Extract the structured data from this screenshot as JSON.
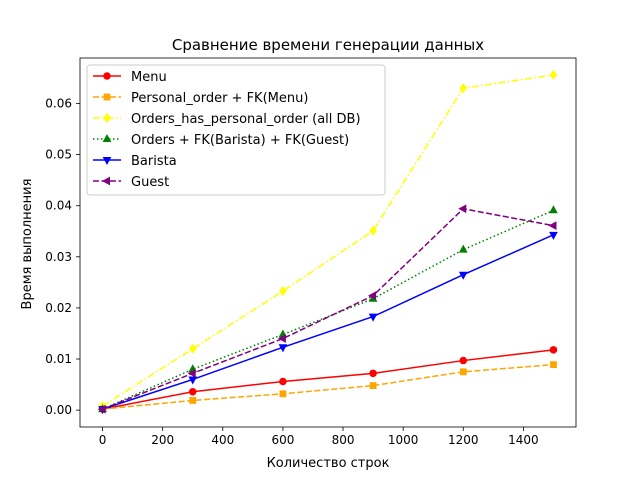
{
  "chart_data": {
    "type": "line",
    "title": "Сравнение времени генерации данных",
    "xlabel": "Количество строк",
    "ylabel": "Время выполнения",
    "x": [
      0,
      300,
      600,
      900,
      1200,
      1500
    ],
    "xlim": [
      -75,
      1575
    ],
    "ylim": [
      -0.0033,
      0.0689
    ],
    "xticks": [
      0,
      200,
      400,
      600,
      800,
      1000,
      1200,
      1400
    ],
    "xtick_labels": [
      "0",
      "200",
      "400",
      "600",
      "800",
      "1000",
      "1200",
      "1400"
    ],
    "yticks": [
      0.0,
      0.01,
      0.02,
      0.03,
      0.04,
      0.05,
      0.06
    ],
    "ytick_labels": [
      "0.00",
      "0.01",
      "0.02",
      "0.03",
      "0.04",
      "0.05",
      "0.06"
    ],
    "grid": false,
    "legend_position": "upper-left",
    "series": [
      {
        "name": "Menu",
        "values": [
          0.0002,
          0.0036,
          0.0056,
          0.0072,
          0.0097,
          0.0118
        ],
        "color": "#ff0000",
        "marker": "circle",
        "dash": "solid"
      },
      {
        "name": "Personal_order + FK(Menu)",
        "values": [
          0.0002,
          0.0019,
          0.0032,
          0.0048,
          0.0075,
          0.0089
        ],
        "color": "#ffa500",
        "marker": "square",
        "dash": "dashed"
      },
      {
        "name": "Orders_has_personal_order (all DB)",
        "values": [
          0.0008,
          0.012,
          0.0233,
          0.0351,
          0.063,
          0.0656
        ],
        "color": "#ffff00",
        "marker": "diamond",
        "dash": "dashdot"
      },
      {
        "name": "Orders + FK(Barista) + FK(Guest)",
        "values": [
          0.0002,
          0.008,
          0.0148,
          0.0218,
          0.0314,
          0.0391
        ],
        "color": "#008000",
        "marker": "triangle-up",
        "dash": "dotted"
      },
      {
        "name": "Barista",
        "values": [
          0.0002,
          0.006,
          0.0123,
          0.0183,
          0.0265,
          0.0343
        ],
        "color": "#0000ff",
        "marker": "triangle-down",
        "dash": "solid"
      },
      {
        "name": "Guest",
        "values": [
          0.0002,
          0.0072,
          0.014,
          0.0224,
          0.0394,
          0.0361
        ],
        "color": "#800080",
        "marker": "triangle-left",
        "dash": "dashed"
      }
    ]
  }
}
